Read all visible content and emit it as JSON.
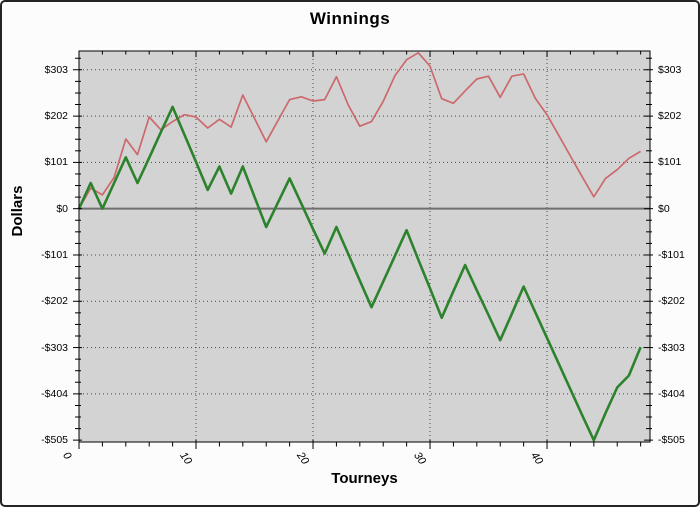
{
  "window": {
    "background": "#fcfcfc",
    "border_color": "#242424"
  },
  "chart_data": {
    "type": "line",
    "title": "Winnings",
    "xlabel": "Tourneys",
    "ylabel": "Dollars",
    "plot_bg": "#d3d3d3",
    "grid": {
      "on": true,
      "style": "dotted",
      "color": "#474747",
      "zero_line_color": "#6f6f6f"
    },
    "legend_position": "none",
    "xlim": [
      0,
      48.8
    ],
    "ylim": [
      -509,
      344
    ],
    "x_axis": {
      "tick_values": [
        0,
        10,
        20,
        30,
        40
      ],
      "tick_labels": [
        "0",
        "10",
        "20",
        "30",
        "40"
      ],
      "minor_step": 2
    },
    "y_axis": {
      "tick_values": [
        303,
        202,
        101,
        0,
        -101,
        -202,
        -303,
        -404,
        -505
      ],
      "tick_labels": [
        "$303",
        "$202",
        "$101",
        "$0",
        "-$101",
        "-$202",
        "-$303",
        "-$404",
        "-$505"
      ],
      "minor_step": 25.25
    },
    "x": [
      0,
      1,
      2,
      3,
      4,
      5,
      6,
      7,
      8,
      9,
      10,
      11,
      12,
      13,
      14,
      15,
      16,
      17,
      18,
      19,
      20,
      21,
      22,
      23,
      24,
      25,
      26,
      27,
      28,
      29,
      30,
      31,
      32,
      33,
      34,
      35,
      36,
      37,
      38,
      39,
      40,
      41,
      42,
      43,
      44,
      45,
      46,
      47,
      48
    ],
    "series": [
      {
        "name": "winnings-red",
        "color": "#cb696d",
        "width": 1.7,
        "values": [
          0,
          45,
          30,
          68,
          152,
          118,
          200,
          172,
          190,
          205,
          200,
          176,
          195,
          178,
          248,
          197,
          146,
          192,
          238,
          244,
          235,
          238,
          288,
          227,
          180,
          190,
          234,
          290,
          325,
          340,
          311,
          240,
          230,
          257,
          283,
          289,
          243,
          289,
          294,
          241,
          205,
          160,
          115,
          70,
          26,
          66,
          85,
          110,
          125
        ]
      },
      {
        "name": "winnings-green",
        "color": "#2d832d",
        "width": 2.6,
        "values": [
          0,
          56,
          0,
          56,
          112,
          56,
          111,
          167,
          222,
          162,
          102,
          41,
          92,
          33,
          92,
          26,
          -40,
          13,
          66,
          11,
          -44,
          -98,
          -40,
          -98,
          -157,
          -215,
          -159,
          -103,
          -47,
          -111,
          -174,
          -238,
          -180,
          -123,
          -178,
          -232,
          -287,
          -229,
          -170,
          -226,
          -282,
          -338,
          -394,
          -450,
          -505,
          -446,
          -390,
          -364,
          -302
        ]
      }
    ]
  }
}
